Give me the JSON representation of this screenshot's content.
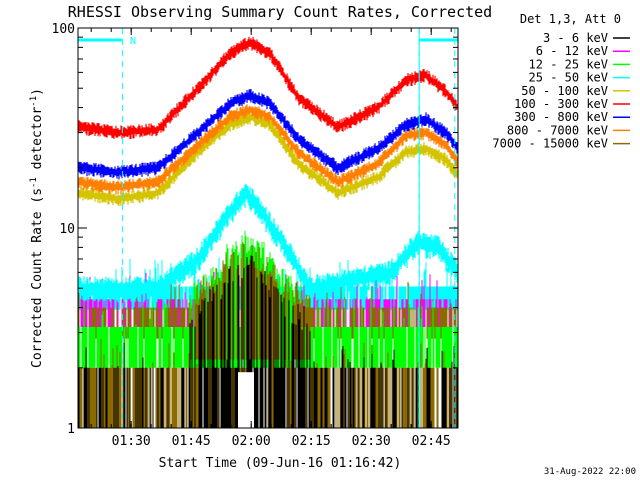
{
  "chart_data": {
    "type": "line",
    "title": "RHESSI Observing Summary Count Rates, Corrected",
    "xlabel": "Start Time (09-Jun-16 01:16:42)",
    "ylabel_main": "Corrected Count Rate (s",
    "ylabel_sup1": "-1",
    "ylabel_mid": " detector",
    "ylabel_sup2": "-1",
    "ylabel_end": ")",
    "y_scale": "log",
    "ylim": [
      1,
      100
    ],
    "xlim_minutes": [
      0,
      95
    ],
    "x_ticks": [
      {
        "label": "01:30",
        "min": 13.3
      },
      {
        "label": "01:45",
        "min": 28.3
      },
      {
        "label": "02:00",
        "min": 43.3
      },
      {
        "label": "02:15",
        "min": 58.3
      },
      {
        "label": "02:30",
        "min": 73.3
      },
      {
        "label": "02:45",
        "min": 88.3
      }
    ],
    "y_ticks": [
      {
        "label": "1",
        "value": 1
      },
      {
        "label": "10",
        "value": 10
      },
      {
        "label": "100",
        "value": 100
      }
    ],
    "legend_title": "Det 1,3, Att 0",
    "legend_position": "right",
    "timestamp": "31-Aug-2022 22:00",
    "flag_label": "N",
    "night_segments_min": [
      [
        0,
        11.1
      ],
      [
        85.3,
        95
      ]
    ],
    "series": [
      {
        "name": "3 - 6 keV",
        "color": "#000000"
      },
      {
        "name": "6 - 12 keV",
        "color": "#ff00ff"
      },
      {
        "name": "12 - 25 keV",
        "color": "#00ff00"
      },
      {
        "name": "25 - 50 keV",
        "color": "#00ffff"
      },
      {
        "name": "50 - 100 keV",
        "color": "#d4c400"
      },
      {
        "name": "100 - 300 keV",
        "color": "#ff0000"
      },
      {
        "name": "300 - 800 keV",
        "color": "#0000ff"
      },
      {
        "name": "800 - 7000 keV",
        "color": "#ff8000"
      },
      {
        "name": "7000 - 15000 keV",
        "color": "#8b6a00"
      }
    ],
    "envelopes": [
      {
        "series": "100 - 300 keV",
        "level": [
          {
            "min": 0,
            "value": 32
          },
          {
            "min": 10,
            "value": 30
          },
          {
            "min": 20,
            "value": 31
          },
          {
            "min": 30,
            "value": 50
          },
          {
            "min": 38,
            "value": 75
          },
          {
            "min": 43,
            "value": 85
          },
          {
            "min": 48,
            "value": 75
          },
          {
            "min": 55,
            "value": 45
          },
          {
            "min": 65,
            "value": 32
          },
          {
            "min": 75,
            "value": 40
          },
          {
            "min": 82,
            "value": 55
          },
          {
            "min": 87,
            "value": 58
          },
          {
            "min": 92,
            "value": 48
          },
          {
            "min": 95,
            "value": 40
          }
        ]
      },
      {
        "series": "300 - 800 keV",
        "level": [
          {
            "min": 0,
            "value": 20
          },
          {
            "min": 10,
            "value": 19
          },
          {
            "min": 20,
            "value": 20
          },
          {
            "min": 30,
            "value": 30
          },
          {
            "min": 38,
            "value": 42
          },
          {
            "min": 43,
            "value": 46
          },
          {
            "min": 48,
            "value": 42
          },
          {
            "min": 55,
            "value": 28
          },
          {
            "min": 65,
            "value": 20
          },
          {
            "min": 75,
            "value": 25
          },
          {
            "min": 82,
            "value": 33
          },
          {
            "min": 87,
            "value": 35
          },
          {
            "min": 92,
            "value": 30
          },
          {
            "min": 95,
            "value": 25
          }
        ]
      },
      {
        "series": "800 - 7000 keV",
        "level": [
          {
            "min": 0,
            "value": 17
          },
          {
            "min": 10,
            "value": 16
          },
          {
            "min": 20,
            "value": 17
          },
          {
            "min": 30,
            "value": 26
          },
          {
            "min": 38,
            "value": 36
          },
          {
            "min": 43,
            "value": 39
          },
          {
            "min": 48,
            "value": 36
          },
          {
            "min": 55,
            "value": 24
          },
          {
            "min": 65,
            "value": 17
          },
          {
            "min": 75,
            "value": 21
          },
          {
            "min": 82,
            "value": 29
          },
          {
            "min": 87,
            "value": 30
          },
          {
            "min": 92,
            "value": 26
          },
          {
            "min": 95,
            "value": 21
          }
        ]
      },
      {
        "series": "50 - 100 keV",
        "level": [
          {
            "min": 0,
            "value": 15
          },
          {
            "min": 10,
            "value": 14
          },
          {
            "min": 20,
            "value": 15
          },
          {
            "min": 30,
            "value": 24
          },
          {
            "min": 38,
            "value": 33
          },
          {
            "min": 43,
            "value": 36
          },
          {
            "min": 48,
            "value": 33
          },
          {
            "min": 55,
            "value": 21
          },
          {
            "min": 65,
            "value": 15
          },
          {
            "min": 75,
            "value": 18
          },
          {
            "min": 82,
            "value": 24
          },
          {
            "min": 87,
            "value": 25
          },
          {
            "min": 92,
            "value": 22
          },
          {
            "min": 95,
            "value": 18
          }
        ]
      },
      {
        "series": "25 - 50 keV",
        "level": [
          {
            "min": 0,
            "value": 5
          },
          {
            "min": 20,
            "value": 5
          },
          {
            "min": 30,
            "value": 7
          },
          {
            "min": 38,
            "value": 12
          },
          {
            "min": 42,
            "value": 15
          },
          {
            "min": 46,
            "value": 12
          },
          {
            "min": 52,
            "value": 8
          },
          {
            "min": 58,
            "value": 5
          },
          {
            "min": 78,
            "value": 6
          },
          {
            "min": 85,
            "value": 8.5
          },
          {
            "min": 90,
            "value": 8
          },
          {
            "min": 95,
            "value": 6
          }
        ]
      }
    ]
  }
}
